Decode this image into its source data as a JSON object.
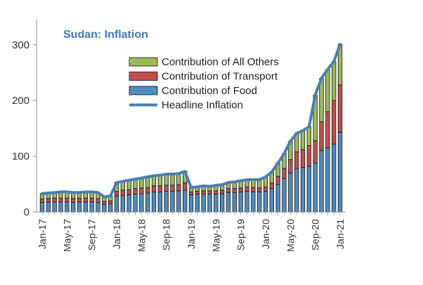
{
  "chart_data": {
    "type": "bar",
    "stacked": true,
    "title": "Sudan: Inflation",
    "xlabel": "",
    "ylabel": "",
    "ylim": [
      0,
      340
    ],
    "yticks": [
      0,
      100,
      200,
      300
    ],
    "grid": false,
    "legend_position": "top-center",
    "categories": [
      "Jan-17",
      "Feb-17",
      "Mar-17",
      "Apr-17",
      "May-17",
      "Jun-17",
      "Jul-17",
      "Aug-17",
      "Sep-17",
      "Oct-17",
      "Nov-17",
      "Dec-17",
      "Jan-18",
      "Feb-18",
      "Mar-18",
      "Apr-18",
      "May-18",
      "Jun-18",
      "Jul-18",
      "Aug-18",
      "Sep-18",
      "Oct-18",
      "Nov-18",
      "Dec-18",
      "Jan-19",
      "Feb-19",
      "Mar-19",
      "Apr-19",
      "May-19",
      "Jun-19",
      "Jul-19",
      "Aug-19",
      "Sep-19",
      "Oct-19",
      "Nov-19",
      "Dec-19",
      "Jan-20",
      "Feb-20",
      "Mar-20",
      "Apr-20",
      "May-20",
      "Jun-20",
      "Jul-20",
      "Aug-20",
      "Sep-20",
      "Oct-20",
      "Nov-20",
      "Dec-20",
      "Jan-21"
    ],
    "x_tick_labels": [
      "Jan-17",
      "May-17",
      "Sep-17",
      "Jan-18",
      "May-18",
      "Sep-18",
      "Jan-19",
      "May-19",
      "Sep-19",
      "Jan-20",
      "May-20",
      "Sep-20",
      "Jan-21"
    ],
    "series": [
      {
        "name": "Contribution of Food",
        "color": "#4e8cc0",
        "values": [
          17,
          18,
          18,
          18,
          18,
          17,
          18,
          18,
          18,
          17,
          14,
          15,
          29,
          30,
          31,
          32,
          33,
          34,
          36,
          36,
          37,
          37,
          38,
          39,
          31,
          32,
          32,
          32,
          32,
          33,
          35,
          35,
          36,
          37,
          36,
          36,
          37,
          42,
          50,
          60,
          70,
          78,
          80,
          82,
          88,
          110,
          115,
          122,
          143
        ]
      },
      {
        "name": "Contribution of Transport",
        "color": "#c0504d",
        "values": [
          6,
          6,
          7,
          7,
          7,
          7,
          7,
          7,
          7,
          7,
          5,
          5,
          8,
          9,
          9,
          10,
          10,
          10,
          11,
          11,
          11,
          11,
          11,
          13,
          5,
          5,
          6,
          6,
          6,
          6,
          7,
          7,
          7,
          8,
          8,
          7,
          8,
          10,
          14,
          18,
          24,
          30,
          32,
          37,
          40,
          52,
          65,
          78,
          85
        ]
      },
      {
        "name": "Contribution of All Others",
        "color": "#9bbb59",
        "values": [
          10,
          10,
          10,
          11,
          11,
          11,
          10,
          11,
          11,
          11,
          8,
          9,
          16,
          16,
          17,
          17,
          18,
          19,
          18,
          19,
          20,
          20,
          20,
          21,
          8,
          8,
          9,
          8,
          10,
          10,
          11,
          12,
          12,
          13,
          14,
          15,
          18,
          20,
          24,
          27,
          33,
          33,
          34,
          34,
          82,
          78,
          76,
          70,
          73
        ]
      },
      {
        "name": "Headline Inflation",
        "color": "#4a7faf",
        "type": "line",
        "values": [
          33,
          34,
          35,
          36,
          36,
          35,
          35,
          36,
          36,
          35,
          27,
          29,
          53,
          55,
          57,
          59,
          61,
          63,
          65,
          66,
          68,
          68,
          69,
          73,
          44,
          45,
          47,
          46,
          48,
          49,
          53,
          54,
          56,
          58,
          58,
          58,
          63,
          72,
          88,
          105,
          127,
          141,
          146,
          153,
          210,
          240,
          256,
          270,
          301
        ]
      }
    ]
  }
}
